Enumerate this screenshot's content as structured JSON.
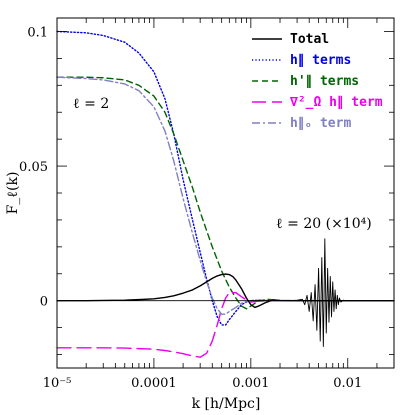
{
  "chart_data": {
    "type": "line",
    "xlabel": "k [h/Mpc]",
    "ylabel": "F_ℓ(k)",
    "xscale": "log",
    "xlim": [
      1e-05,
      0.03
    ],
    "ylim": [
      -0.025,
      0.105
    ],
    "x_ticks": [
      {
        "value": 1e-05,
        "label": "10⁻⁵"
      },
      {
        "value": 0.0001,
        "label": "0.0001"
      },
      {
        "value": 0.001,
        "label": "0.001"
      },
      {
        "value": 0.01,
        "label": "0.01"
      }
    ],
    "y_ticks": [
      {
        "value": 0,
        "label": "0"
      },
      {
        "value": 0.05,
        "label": "0.05"
      },
      {
        "value": 0.1,
        "label": "0.1"
      }
    ],
    "zero_line": true,
    "legend_position": "top-right",
    "legend": [
      {
        "label": "Total",
        "color": "#000000",
        "dash": "solid"
      },
      {
        "label": "h∥ terms",
        "color": "#0000ee",
        "dash": "dotted"
      },
      {
        "label": "h'∥ terms",
        "color": "#006400",
        "dash": "dashed"
      },
      {
        "label": "∇²_Ω h∥ term",
        "color": "#ee00ee",
        "dash": "longdash"
      },
      {
        "label": "h∥ₒ term",
        "color": "#8080c0",
        "dash": "dashdot"
      }
    ],
    "annotations": [
      {
        "text": "ℓ = 2"
      },
      {
        "text": "ℓ = 20  (×10⁴)"
      }
    ],
    "series": [
      {
        "name": "h∥ terms",
        "group": "ℓ = 2",
        "color": "#0000ee",
        "dash": "dotted",
        "x": [
          1e-05,
          2e-05,
          3e-05,
          5e-05,
          7e-05,
          0.0001,
          0.00013,
          0.00016,
          0.0002,
          0.00025,
          0.0003,
          0.00035,
          0.0004,
          0.00045,
          0.0005,
          0.00055,
          0.0006,
          0.0007,
          0.0008,
          0.0009,
          0.001,
          0.0012,
          0.0015,
          0.002,
          0.003,
          0.005,
          0.01,
          0.03
        ],
        "y": [
          0.1,
          0.0995,
          0.0985,
          0.096,
          0.092,
          0.085,
          0.075,
          0.062,
          0.045,
          0.03,
          0.018,
          0.008,
          0.0,
          -0.006,
          -0.009,
          -0.009,
          -0.007,
          -0.004,
          -0.0015,
          -0.0005,
          0.0,
          0.0002,
          0.0,
          0.0,
          0.0,
          0.0,
          0.0,
          0.0
        ]
      },
      {
        "name": "h'∥ terms",
        "group": "ℓ = 2",
        "color": "#006400",
        "dash": "dashed",
        "x": [
          1e-05,
          2e-05,
          3e-05,
          5e-05,
          7e-05,
          0.0001,
          0.00013,
          0.00016,
          0.0002,
          0.00025,
          0.0003,
          0.00035,
          0.0004,
          0.0005,
          0.0006,
          0.0007,
          0.0008,
          0.0009,
          0.001,
          0.0011,
          0.0012,
          0.0015,
          0.002,
          0.003,
          0.005,
          0.01,
          0.03
        ],
        "y": [
          0.083,
          0.083,
          0.0828,
          0.082,
          0.08,
          0.076,
          0.07,
          0.062,
          0.052,
          0.042,
          0.033,
          0.026,
          0.02,
          0.011,
          0.005,
          0.001,
          -0.002,
          -0.003,
          -0.002,
          -0.001,
          0.0,
          0.0005,
          0.0,
          0.0,
          0.0,
          0.0,
          0.0
        ]
      },
      {
        "name": "∇²_Ω h∥ term",
        "group": "ℓ = 2",
        "color": "#ee00ee",
        "dash": "longdash",
        "x": [
          1e-05,
          2e-05,
          3e-05,
          5e-05,
          7e-05,
          0.0001,
          0.00013,
          0.00016,
          0.0002,
          0.00025,
          0.0003,
          0.00035,
          0.0004,
          0.00045,
          0.0005,
          0.00055,
          0.0006,
          0.0007,
          0.0008,
          0.0009,
          0.001,
          0.0012,
          0.0015,
          0.002,
          0.003,
          0.005,
          0.01,
          0.03
        ],
        "y": [
          -0.0175,
          -0.0175,
          -0.0175,
          -0.0176,
          -0.0178,
          -0.018,
          -0.0185,
          -0.019,
          -0.0197,
          -0.0205,
          -0.021,
          -0.0195,
          -0.015,
          -0.009,
          -0.003,
          0.001,
          0.003,
          0.003,
          0.0015,
          0.0003,
          -0.0005,
          -0.0002,
          0.0,
          0.0,
          0.0,
          0.0,
          0.0,
          0.0
        ]
      },
      {
        "name": "h∥ₒ term",
        "group": "ℓ = 2",
        "color": "#8080c0",
        "dash": "dashdot",
        "x": [
          1e-05,
          2e-05,
          3e-05,
          5e-05,
          7e-05,
          0.0001,
          0.00013,
          0.00016,
          0.0002,
          0.00025,
          0.0003,
          0.00035,
          0.0004,
          0.00045,
          0.0005,
          0.00055,
          0.0006,
          0.0007,
          0.0008,
          0.0009,
          0.001,
          0.0012,
          0.0015,
          0.002,
          0.003,
          0.005,
          0.01,
          0.03
        ],
        "y": [
          0.083,
          0.0825,
          0.082,
          0.0805,
          0.078,
          0.072,
          0.063,
          0.052,
          0.038,
          0.025,
          0.015,
          0.007,
          0.001,
          -0.003,
          -0.005,
          -0.005,
          -0.004,
          -0.0025,
          -0.001,
          -0.0003,
          0.0,
          0.0001,
          0.0,
          0.0,
          0.0,
          0.0,
          0.0,
          0.0
        ]
      },
      {
        "name": "Total",
        "group": "ℓ = 2",
        "color": "#000000",
        "dash": "solid",
        "x": [
          1e-05,
          2e-05,
          3e-05,
          5e-05,
          7e-05,
          0.0001,
          0.00013,
          0.00016,
          0.0002,
          0.00025,
          0.0003,
          0.00035,
          0.0004,
          0.00045,
          0.0005,
          0.00055,
          0.0006,
          0.00065,
          0.0007,
          0.0008,
          0.0009,
          0.001,
          0.0011,
          0.0012,
          0.0014,
          0.0017,
          0.002,
          0.003,
          0.005,
          0.01,
          0.03
        ],
        "y": [
          0.0,
          0.0,
          0.0001,
          0.0002,
          0.0004,
          0.0007,
          0.0012,
          0.0018,
          0.0028,
          0.004,
          0.0055,
          0.007,
          0.0083,
          0.0092,
          0.0097,
          0.0099,
          0.0097,
          0.009,
          0.0077,
          0.0045,
          0.001,
          -0.0015,
          -0.0025,
          -0.002,
          -0.0008,
          0.0003,
          0.0001,
          0.0,
          0.0,
          0.0,
          0.0
        ]
      },
      {
        "name": "ℓ = 20 (×10⁴)",
        "group": "ℓ = 20",
        "color": "#000000",
        "dash": "solid",
        "width": 0.9,
        "x": [
          0.001,
          0.0015,
          0.002,
          0.0025,
          0.003,
          0.0034,
          0.0036,
          0.0038,
          0.004,
          0.0042,
          0.0044,
          0.0046,
          0.0048,
          0.005,
          0.0052,
          0.0054,
          0.0056,
          0.0058,
          0.006,
          0.0062,
          0.0064,
          0.0066,
          0.0068,
          0.007,
          0.0072,
          0.0074,
          0.0076,
          0.0078,
          0.008,
          0.0082,
          0.0085,
          0.009,
          0.0095,
          0.01,
          0.012,
          0.015,
          0.02,
          0.03
        ],
        "y": [
          0.0,
          0.0,
          0.0,
          0.0,
          0.0002,
          0.0005,
          -0.0015,
          0.002,
          -0.004,
          0.003,
          -0.0075,
          0.006,
          -0.011,
          0.012,
          -0.015,
          0.016,
          -0.017,
          0.023,
          -0.012,
          0.012,
          -0.008,
          0.009,
          -0.006,
          0.007,
          -0.004,
          0.004,
          -0.003,
          0.002,
          -0.0015,
          0.001,
          -0.0005,
          0.0002,
          0.0,
          0.0,
          0.0,
          0.0,
          0.0,
          0.0
        ]
      }
    ]
  }
}
